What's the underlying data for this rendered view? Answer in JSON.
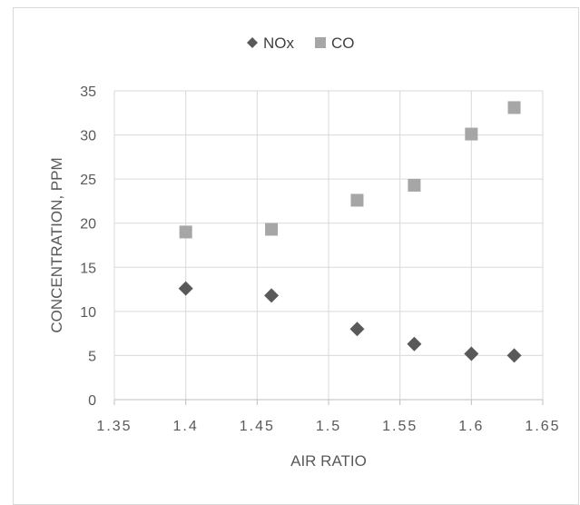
{
  "chart_data": {
    "type": "scatter",
    "title": "",
    "xlabel": "AIR RATIO",
    "ylabel": "CONCENTRATION, PPM",
    "xlim": [
      1.35,
      1.65
    ],
    "ylim": [
      0,
      35
    ],
    "x_ticks": [
      "1.35",
      "1.4",
      "1.45",
      "1.5",
      "1.55",
      "1.6",
      "1.65"
    ],
    "y_ticks": [
      "0",
      "5",
      "10",
      "15",
      "20",
      "25",
      "30",
      "35"
    ],
    "grid": true,
    "legend_position": "top",
    "series": [
      {
        "name": "NOx",
        "marker": "diamond",
        "color": "#595959",
        "points": [
          {
            "x": 1.4,
            "y": 12.6
          },
          {
            "x": 1.46,
            "y": 11.8
          },
          {
            "x": 1.52,
            "y": 8.0
          },
          {
            "x": 1.56,
            "y": 6.3
          },
          {
            "x": 1.6,
            "y": 5.2
          },
          {
            "x": 1.63,
            "y": 5.0
          }
        ]
      },
      {
        "name": "CO",
        "marker": "square",
        "color": "#a6a6a6",
        "points": [
          {
            "x": 1.4,
            "y": 19.0
          },
          {
            "x": 1.46,
            "y": 19.3
          },
          {
            "x": 1.52,
            "y": 22.6
          },
          {
            "x": 1.56,
            "y": 24.3
          },
          {
            "x": 1.6,
            "y": 30.1
          },
          {
            "x": 1.63,
            "y": 33.1
          }
        ]
      }
    ]
  }
}
